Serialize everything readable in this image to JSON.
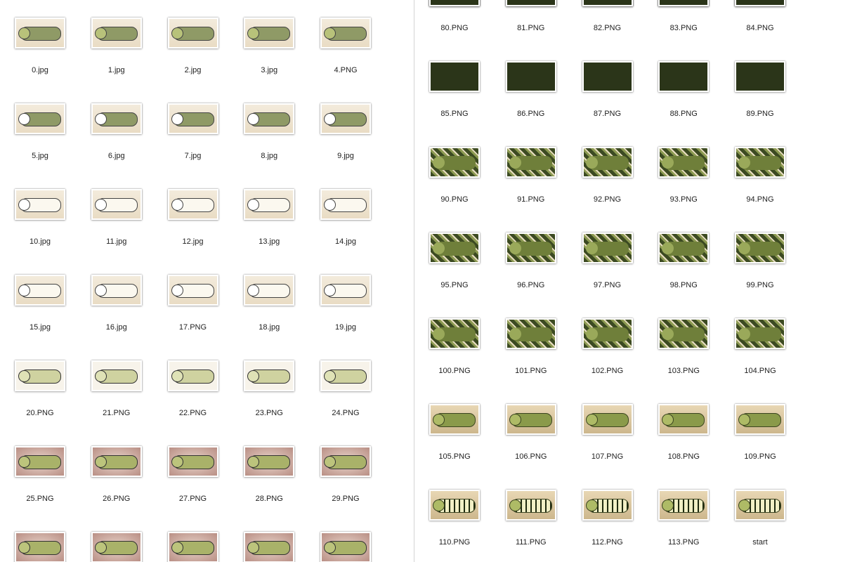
{
  "left_pane": {
    "files": [
      "0.jpg",
      "1.jpg",
      "2.jpg",
      "3.jpg",
      "4.PNG",
      "5.jpg",
      "6.jpg",
      "7.jpg",
      "8.jpg",
      "9.jpg",
      "10.jpg",
      "11.jpg",
      "12.jpg",
      "13.jpg",
      "14.jpg",
      "15.jpg",
      "16.jpg",
      "17.PNG",
      "18.jpg",
      "19.jpg",
      "20.PNG",
      "21.PNG",
      "22.PNG",
      "23.PNG",
      "24.PNG",
      "25.PNG",
      "26.PNG",
      "27.PNG",
      "28.PNG",
      "29.PNG"
    ]
  },
  "right_pane": {
    "files": [
      "80.PNG",
      "81.PNG",
      "82.PNG",
      "83.PNG",
      "84.PNG",
      "85.PNG",
      "86.PNG",
      "87.PNG",
      "88.PNG",
      "89.PNG",
      "90.PNG",
      "91.PNG",
      "92.PNG",
      "93.PNG",
      "94.PNG",
      "95.PNG",
      "96.PNG",
      "97.PNG",
      "98.PNG",
      "99.PNG",
      "100.PNG",
      "101.PNG",
      "102.PNG",
      "103.PNG",
      "104.PNG",
      "105.PNG",
      "106.PNG",
      "107.PNG",
      "108.PNG",
      "109.PNG",
      "110.PNG",
      "111.PNG",
      "112.PNG",
      "113.PNG",
      "start"
    ]
  }
}
